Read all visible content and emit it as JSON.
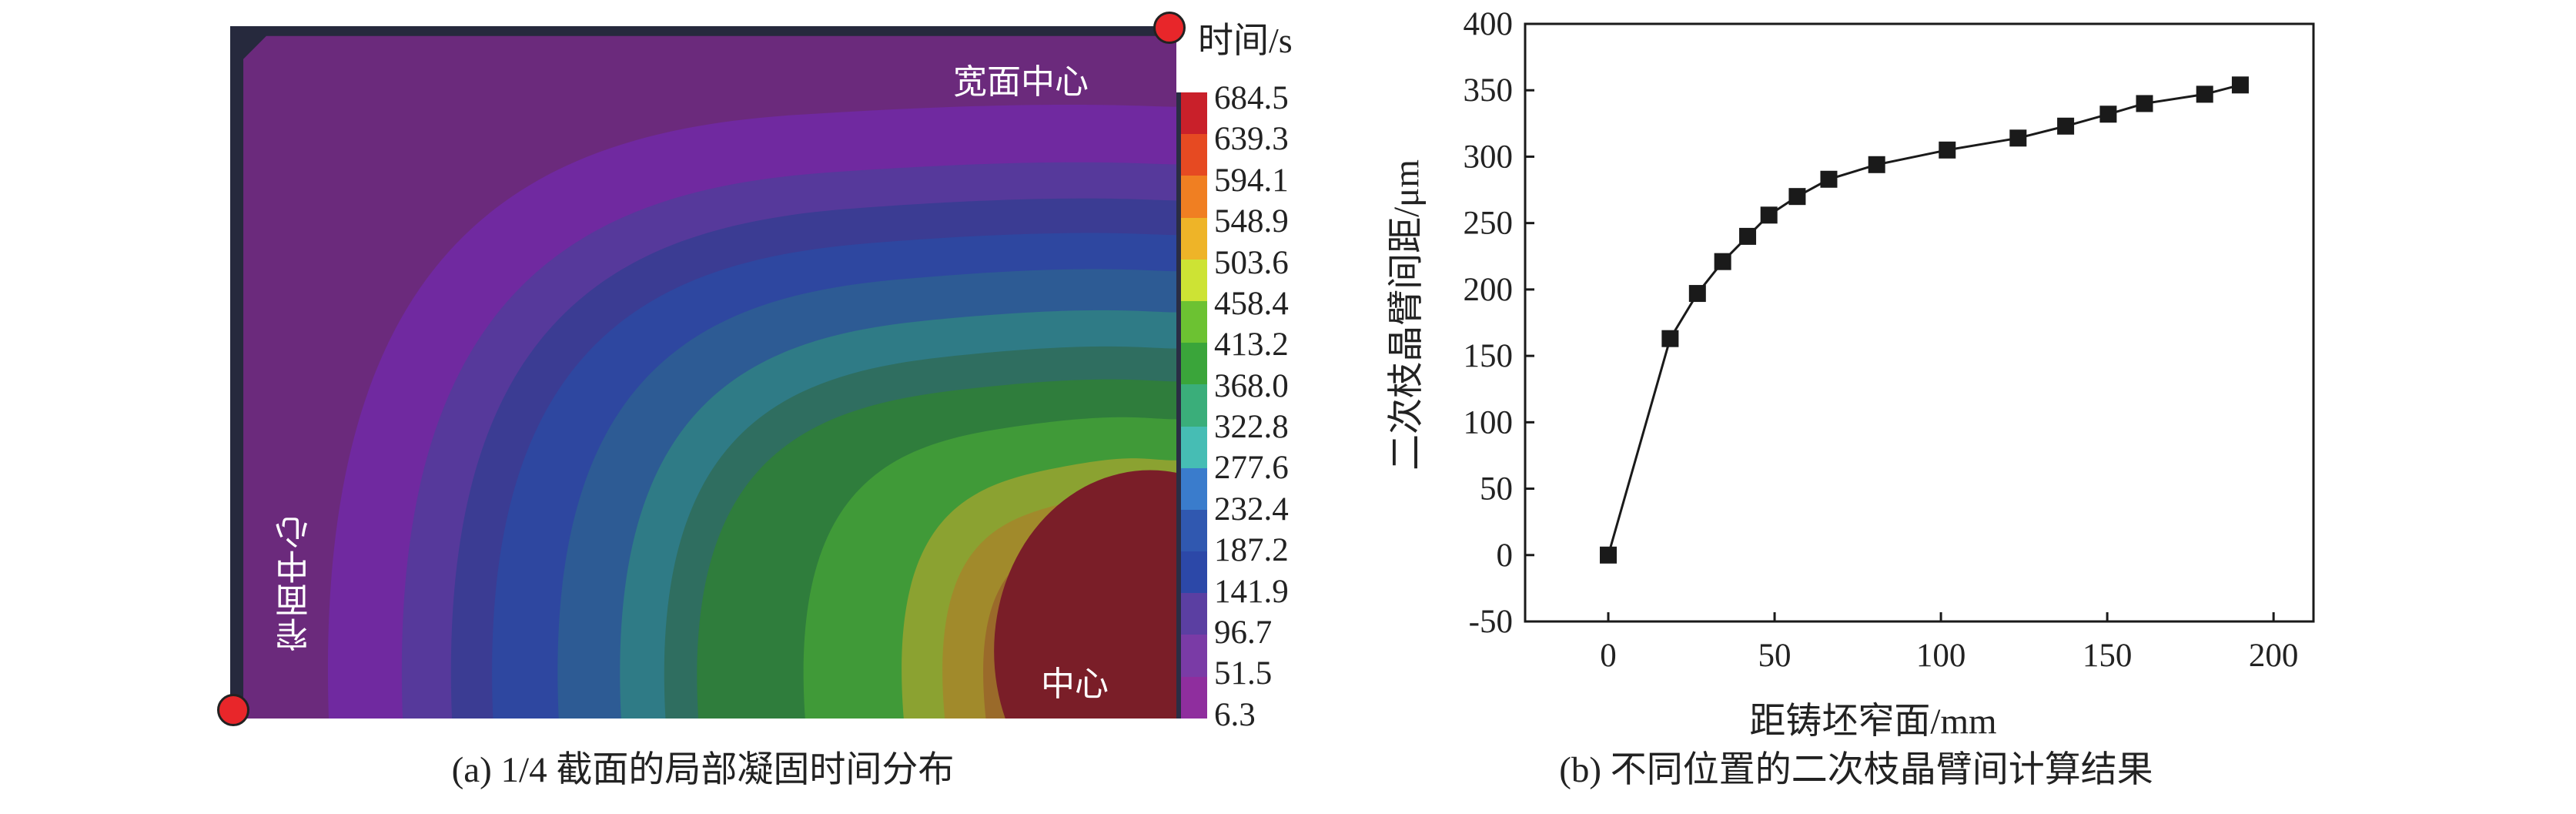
{
  "panel_a": {
    "caption": "(a) 1/4 截面的局部凝固时间分布",
    "labels": {
      "wide_face_center": "宽面中心",
      "narrow_face_center": "窄面中心",
      "center": "中心"
    },
    "colorbar": {
      "title": "时间/s",
      "ticks": [
        "684.5",
        "639.3",
        "594.1",
        "548.9",
        "503.6",
        "458.4",
        "413.2",
        "368.0",
        "322.8",
        "277.6",
        "232.4",
        "187.2",
        "141.9",
        "96.7",
        "51.5",
        "6.3"
      ],
      "colors": [
        "#c9202a",
        "#e64a22",
        "#f07f22",
        "#eeb428",
        "#cde334",
        "#6cc232",
        "#3aa53a",
        "#3aae7a",
        "#46bdb4",
        "#3a7ccc",
        "#3058b0",
        "#2c48a8",
        "#5b3fa2",
        "#7a3ba6",
        "#8f2e9e"
      ]
    },
    "marker_color": "#e8262a"
  },
  "chart_data": {
    "type": "line",
    "caption": "(b) 不同位置的二次枝晶臂间计算结果",
    "xlabel": "距铸坯窄面/mm",
    "ylabel": "二次枝晶臂间距/μm",
    "xlim": [
      -25,
      212
    ],
    "ylim": [
      -50,
      400
    ],
    "xticks": [
      0,
      50,
      100,
      150,
      200
    ],
    "yticks": [
      -50,
      0,
      50,
      100,
      150,
      200,
      250,
      300,
      350,
      400
    ],
    "grid": false,
    "marker": "square",
    "color": "#1a1a1a",
    "x": [
      0,
      18.6,
      26.8,
      34.4,
      41.9,
      48.3,
      56.8,
      66.3,
      80.7,
      101.9,
      123.2,
      137.5,
      150.3,
      161.2,
      179.3,
      190.0
    ],
    "y": [
      0,
      163,
      197,
      221,
      240,
      256,
      270,
      283,
      294,
      305,
      314,
      323,
      332,
      340,
      347,
      354
    ]
  }
}
